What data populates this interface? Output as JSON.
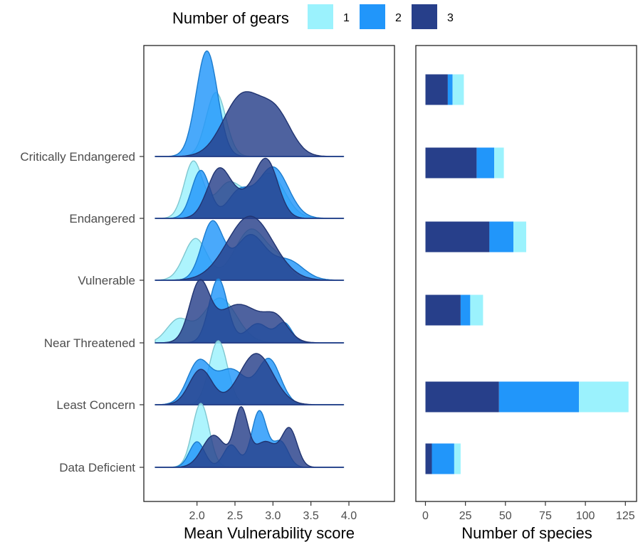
{
  "legend": {
    "title": "Number of gears",
    "items": [
      {
        "label": "1",
        "color": "#9BF2FD"
      },
      {
        "label": "2",
        "color": "#2196FA"
      },
      {
        "label": "3",
        "color": "#273F8A"
      }
    ]
  },
  "chart_data": [
    {
      "type": "ridgeline",
      "xlabel": "Mean Vulnerability score",
      "ylabel": "",
      "xlim": [
        1.3,
        4.6
      ],
      "xticks": [
        2.0,
        2.5,
        3.0,
        3.5,
        4.0
      ],
      "xtick_labels": [
        "2.0",
        "2.5",
        "3.0",
        "3.5",
        "4.0"
      ],
      "categories": [
        "Data Deficient",
        "Least Concern",
        "Near Threatened",
        "Vulnerable",
        "Endangered",
        "Critically Endangered"
      ],
      "grid": false,
      "series": [
        {
          "name": "1",
          "color": "#9BF2FD",
          "peaks": [
            [
              [
                2.05,
                0.11,
                1.0
              ]
            ],
            [
              [
                2.28,
                0.12,
                1.0
              ]
            ],
            [
              [
                2.3,
                0.22,
                0.7
              ],
              [
                1.75,
                0.15,
                0.35
              ]
            ],
            [
              [
                1.98,
                0.15,
                0.65
              ],
              [
                2.72,
                0.22,
                0.8
              ],
              [
                3.1,
                0.12,
                0.2
              ]
            ],
            [
              [
                1.95,
                0.12,
                0.88
              ],
              [
                2.42,
                0.18,
                0.55
              ],
              [
                2.95,
                0.2,
                0.7
              ]
            ],
            [
              [
                2.25,
                0.13,
                1.0
              ]
            ]
          ]
        },
        {
          "name": "2",
          "color": "#2196FA",
          "peaks": [
            [
              [
                2.0,
                0.1,
                0.4
              ],
              [
                2.45,
                0.1,
                0.35
              ],
              [
                2.82,
                0.1,
                0.88
              ],
              [
                3.1,
                0.1,
                0.4
              ]
            ],
            [
              [
                2.02,
                0.15,
                0.65
              ],
              [
                2.45,
                0.2,
                0.55
              ],
              [
                2.95,
                0.15,
                0.7
              ]
            ],
            [
              [
                2.28,
                0.12,
                1.0
              ],
              [
                2.8,
                0.15,
                0.3
              ],
              [
                3.15,
                0.1,
                0.3
              ]
            ],
            [
              [
                2.2,
                0.14,
                0.9
              ],
              [
                2.7,
                0.2,
                0.7
              ],
              [
                3.2,
                0.2,
                0.3
              ]
            ],
            [
              [
                2.05,
                0.12,
                0.75
              ],
              [
                2.55,
                0.15,
                0.4
              ],
              [
                3.0,
                0.2,
                0.8
              ]
            ],
            [
              [
                2.13,
                0.14,
                1.65
              ]
            ]
          ]
        },
        {
          "name": "3",
          "color": "#273F8A",
          "peaks": [
            [
              [
                2.22,
                0.15,
                0.5
              ],
              [
                2.58,
                0.09,
                0.88
              ],
              [
                2.9,
                0.15,
                0.4
              ],
              [
                3.22,
                0.1,
                0.58
              ]
            ],
            [
              [
                2.05,
                0.15,
                0.55
              ],
              [
                2.78,
                0.22,
                0.8
              ]
            ],
            [
              [
                2.03,
                0.13,
                0.85
              ],
              [
                2.55,
                0.3,
                0.6
              ],
              [
                3.05,
                0.15,
                0.3
              ]
            ],
            [
              [
                2.7,
                0.3,
                1.0
              ]
            ],
            [
              [
                2.28,
                0.15,
                0.7
              ],
              [
                2.92,
                0.15,
                0.85
              ],
              [
                2.6,
                0.2,
                0.3
              ]
            ],
            [
              [
                2.6,
                0.25,
                0.95
              ],
              [
                3.05,
                0.2,
                0.6
              ]
            ]
          ]
        }
      ]
    },
    {
      "type": "bar",
      "orientation": "horizontal",
      "stacked": true,
      "xlabel": "Number of species",
      "ylabel": "",
      "xlim": [
        -6,
        132
      ],
      "xticks": [
        0,
        25,
        50,
        75,
        100,
        125
      ],
      "xtick_labels": [
        "0",
        "25",
        "50",
        "75",
        "100",
        "125"
      ],
      "categories": [
        "Data Deficient",
        "Least Concern",
        "Near Threatened",
        "Vulnerable",
        "Endangered",
        "Critically Endangered"
      ],
      "grid": false,
      "series": [
        {
          "name": "3",
          "color": "#273F8A",
          "values": [
            4,
            46,
            22,
            40,
            32,
            14
          ]
        },
        {
          "name": "2",
          "color": "#2196FA",
          "values": [
            14,
            50,
            6,
            15,
            11,
            3
          ]
        },
        {
          "name": "1",
          "color": "#9BF2FD",
          "values": [
            4,
            31,
            8,
            8,
            6,
            7
          ]
        }
      ]
    }
  ]
}
